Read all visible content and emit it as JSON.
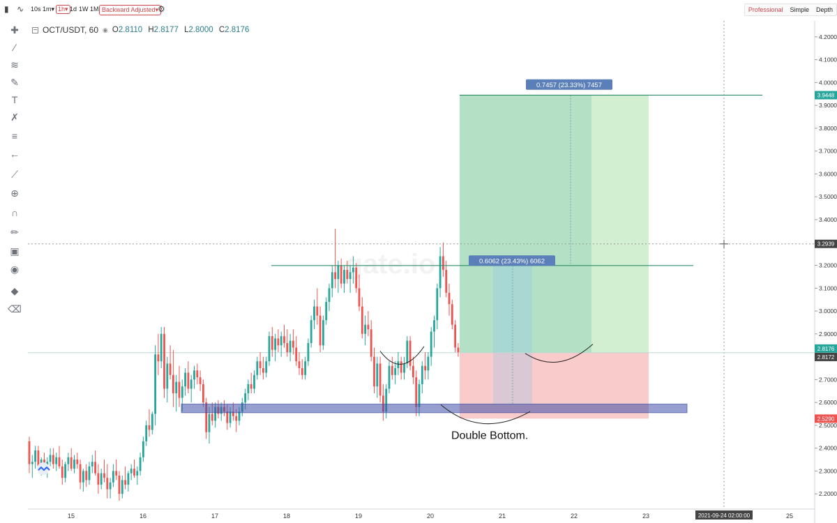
{
  "toolbar": {
    "intervals": [
      "10s",
      "1m▾",
      "1h▾",
      "1d",
      "1W",
      "1M"
    ],
    "active_interval": "1h▾",
    "adjust_label": "Backward Adjusted▾",
    "views": [
      "Professional",
      "Simple",
      "Depth"
    ],
    "active_view": "Professional"
  },
  "symbol": {
    "pair": "OCT/USDT, 60",
    "o_label": "O",
    "o": "2.8110",
    "h_label": "H",
    "h": "2.8177",
    "l_label": "L",
    "l": "2.8000",
    "c_label": "C",
    "c": "2.8176"
  },
  "colors": {
    "up": "#26a69a",
    "down": "#ef5350",
    "accent": "#d0454c",
    "teal": "#2a7e8b"
  },
  "chart_data": {
    "type": "candlestick",
    "y_ticks": [
      "4.2000",
      "4.1000",
      "4.0000",
      "3.9000",
      "3.8000",
      "3.7000",
      "3.6000",
      "3.5000",
      "3.4000",
      "3.3000",
      "3.2000",
      "3.1000",
      "3.0000",
      "2.9000",
      "2.8000",
      "2.7000",
      "2.6000",
      "2.5000",
      "2.4000",
      "2.3000",
      "2.2000"
    ],
    "ylim": [
      2.17,
      4.23
    ],
    "x_ticks": [
      "15",
      "16",
      "17",
      "18",
      "19",
      "20",
      "21",
      "22",
      "23",
      "24",
      "25"
    ],
    "crosshair_time": "2021-09-24 02:00:00",
    "crosshair_price": "3.2939",
    "price_tags": [
      {
        "value": 3.9448,
        "label": "3.9448",
        "color": "#26a69a"
      },
      {
        "value": 3.2939,
        "label": "3.2939",
        "color": "#444444"
      },
      {
        "value": 2.8176,
        "label": "2.8176",
        "color": "#26a69a"
      },
      {
        "value": 2.8172,
        "label": "2.8172",
        "color": "#444444"
      },
      {
        "value": 2.529,
        "label": "2.5290",
        "color": "#ef5350"
      }
    ],
    "measure_labels": [
      "0.6062 (23.43%) 6062",
      "0.7457 (23.33%) 7457"
    ],
    "annotation": "Double Bottom.",
    "support_zone": [
      2.555,
      2.593
    ],
    "resistance": 3.199,
    "target": 3.9448,
    "entry": 2.8176,
    "stop": 2.529,
    "watermark": "gate.io",
    "candles": [
      [
        2.43,
        2.45,
        2.29,
        2.33
      ],
      [
        2.33,
        2.37,
        2.27,
        2.34
      ],
      [
        2.34,
        2.41,
        2.31,
        2.39
      ],
      [
        2.39,
        2.41,
        2.3,
        2.32
      ],
      [
        2.32,
        2.36,
        2.28,
        2.35
      ],
      [
        2.35,
        2.38,
        2.29,
        2.3
      ],
      [
        2.3,
        2.36,
        2.27,
        2.34
      ],
      [
        2.34,
        2.4,
        2.32,
        2.37
      ],
      [
        2.37,
        2.4,
        2.31,
        2.33
      ],
      [
        2.33,
        2.38,
        2.3,
        2.36
      ],
      [
        2.36,
        2.41,
        2.31,
        2.32
      ],
      [
        2.32,
        2.35,
        2.24,
        2.27
      ],
      [
        2.27,
        2.34,
        2.25,
        2.33
      ],
      [
        2.33,
        2.38,
        2.3,
        2.36
      ],
      [
        2.36,
        2.4,
        2.3,
        2.31
      ],
      [
        2.31,
        2.37,
        2.29,
        2.35
      ],
      [
        2.35,
        2.38,
        2.31,
        2.33
      ],
      [
        2.33,
        2.35,
        2.22,
        2.25
      ],
      [
        2.25,
        2.31,
        2.21,
        2.3
      ],
      [
        2.3,
        2.33,
        2.23,
        2.26
      ],
      [
        2.26,
        2.34,
        2.24,
        2.32
      ],
      [
        2.32,
        2.37,
        2.29,
        2.34
      ],
      [
        2.34,
        2.39,
        2.28,
        2.29
      ],
      [
        2.29,
        2.33,
        2.2,
        2.24
      ],
      [
        2.24,
        2.31,
        2.22,
        2.29
      ],
      [
        2.29,
        2.35,
        2.25,
        2.27
      ],
      [
        2.27,
        2.33,
        2.18,
        2.22
      ],
      [
        2.22,
        2.27,
        2.18,
        2.25
      ],
      [
        2.25,
        2.33,
        2.23,
        2.3
      ],
      [
        2.3,
        2.35,
        2.26,
        2.28
      ],
      [
        2.28,
        2.3,
        2.17,
        2.2
      ],
      [
        2.2,
        2.28,
        2.18,
        2.26
      ],
      [
        2.26,
        2.32,
        2.22,
        2.24
      ],
      [
        2.24,
        2.3,
        2.21,
        2.29
      ],
      [
        2.29,
        2.33,
        2.26,
        2.31
      ],
      [
        2.31,
        2.35,
        2.27,
        2.28
      ],
      [
        2.28,
        2.32,
        2.24,
        2.3
      ],
      [
        2.3,
        2.38,
        2.28,
        2.36
      ],
      [
        2.36,
        2.45,
        2.34,
        2.43
      ],
      [
        2.43,
        2.52,
        2.41,
        2.5
      ],
      [
        2.5,
        2.57,
        2.45,
        2.48
      ],
      [
        2.48,
        2.56,
        2.46,
        2.55
      ],
      [
        2.55,
        2.85,
        2.5,
        2.81
      ],
      [
        2.81,
        2.9,
        2.72,
        2.78
      ],
      [
        2.78,
        2.93,
        2.75,
        2.9
      ],
      [
        2.9,
        2.93,
        2.62,
        2.66
      ],
      [
        2.66,
        2.8,
        2.6,
        2.77
      ],
      [
        2.77,
        2.85,
        2.7,
        2.72
      ],
      [
        2.72,
        2.83,
        2.58,
        2.64
      ],
      [
        2.64,
        2.72,
        2.56,
        2.69
      ],
      [
        2.69,
        2.76,
        2.58,
        2.62
      ],
      [
        2.62,
        2.7,
        2.56,
        2.67
      ],
      [
        2.67,
        2.75,
        2.63,
        2.73
      ],
      [
        2.73,
        2.78,
        2.64,
        2.66
      ],
      [
        2.66,
        2.72,
        2.6,
        2.7
      ],
      [
        2.7,
        2.76,
        2.66,
        2.74
      ],
      [
        2.74,
        2.77,
        2.68,
        2.71
      ],
      [
        2.71,
        2.74,
        2.65,
        2.68
      ],
      [
        2.68,
        2.7,
        2.58,
        2.6
      ],
      [
        2.6,
        2.62,
        2.44,
        2.47
      ],
      [
        2.47,
        2.58,
        2.42,
        2.55
      ],
      [
        2.55,
        2.6,
        2.5,
        2.52
      ],
      [
        2.52,
        2.6,
        2.49,
        2.58
      ],
      [
        2.58,
        2.61,
        2.53,
        2.55
      ],
      [
        2.55,
        2.6,
        2.52,
        2.58
      ],
      [
        2.58,
        2.61,
        2.54,
        2.56
      ],
      [
        2.56,
        2.59,
        2.48,
        2.51
      ],
      [
        2.51,
        2.58,
        2.49,
        2.56
      ],
      [
        2.56,
        2.6,
        2.52,
        2.54
      ],
      [
        2.54,
        2.57,
        2.47,
        2.52
      ],
      [
        2.52,
        2.58,
        2.5,
        2.56
      ],
      [
        2.56,
        2.62,
        2.54,
        2.6
      ],
      [
        2.6,
        2.66,
        2.57,
        2.64
      ],
      [
        2.64,
        2.7,
        2.61,
        2.68
      ],
      [
        2.68,
        2.73,
        2.64,
        2.66
      ],
      [
        2.66,
        2.74,
        2.64,
        2.72
      ],
      [
        2.72,
        2.8,
        2.7,
        2.78
      ],
      [
        2.78,
        2.82,
        2.72,
        2.75
      ],
      [
        2.75,
        2.8,
        2.7,
        2.73
      ],
      [
        2.73,
        2.8,
        2.71,
        2.78
      ],
      [
        2.78,
        2.91,
        2.76,
        2.89
      ],
      [
        2.89,
        2.93,
        2.8,
        2.83
      ],
      [
        2.83,
        2.9,
        2.78,
        2.88
      ],
      [
        2.88,
        2.92,
        2.82,
        2.85
      ],
      [
        2.85,
        2.91,
        2.8,
        2.89
      ],
      [
        2.89,
        2.94,
        2.84,
        2.86
      ],
      [
        2.86,
        2.92,
        2.8,
        2.82
      ],
      [
        2.82,
        2.9,
        2.78,
        2.87
      ],
      [
        2.87,
        2.92,
        2.81,
        2.84
      ],
      [
        2.84,
        2.89,
        2.76,
        2.78
      ],
      [
        2.78,
        2.82,
        2.72,
        2.75
      ],
      [
        2.75,
        2.79,
        2.7,
        2.72
      ],
      [
        2.72,
        2.8,
        2.7,
        2.78
      ],
      [
        2.78,
        2.88,
        2.76,
        2.86
      ],
      [
        2.86,
        2.98,
        2.84,
        2.96
      ],
      [
        2.96,
        3.05,
        2.92,
        3.02
      ],
      [
        3.02,
        3.1,
        2.94,
        2.98
      ],
      [
        2.98,
        3.02,
        2.82,
        2.85
      ],
      [
        2.85,
        2.98,
        2.83,
        2.96
      ],
      [
        2.96,
        3.06,
        2.94,
        3.04
      ],
      [
        3.04,
        3.12,
        3.0,
        3.1
      ],
      [
        3.1,
        3.2,
        3.06,
        3.17
      ],
      [
        3.17,
        3.36,
        3.1,
        3.14
      ],
      [
        3.14,
        3.22,
        3.08,
        3.2
      ],
      [
        3.2,
        3.23,
        3.1,
        3.12
      ],
      [
        3.12,
        3.2,
        3.08,
        3.18
      ],
      [
        3.18,
        3.22,
        3.12,
        3.14
      ],
      [
        3.14,
        3.2,
        3.08,
        3.17
      ],
      [
        3.17,
        3.24,
        3.12,
        3.19
      ],
      [
        3.19,
        3.21,
        3.08,
        3.1
      ],
      [
        3.1,
        3.16,
        3.0,
        3.02
      ],
      [
        3.02,
        3.06,
        2.88,
        2.9
      ],
      [
        2.9,
        2.98,
        2.85,
        2.94
      ],
      [
        2.94,
        3.0,
        2.89,
        2.92
      ],
      [
        2.92,
        2.96,
        2.78,
        2.8
      ],
      [
        2.8,
        2.84,
        2.64,
        2.67
      ],
      [
        2.67,
        2.8,
        2.62,
        2.77
      ],
      [
        2.77,
        2.8,
        2.6,
        2.63
      ],
      [
        2.63,
        2.68,
        2.52,
        2.56
      ],
      [
        2.56,
        2.68,
        2.53,
        2.66
      ],
      [
        2.66,
        2.78,
        2.64,
        2.76
      ],
      [
        2.76,
        2.8,
        2.7,
        2.72
      ],
      [
        2.72,
        2.78,
        2.68,
        2.75
      ],
      [
        2.75,
        2.82,
        2.72,
        2.78
      ],
      [
        2.78,
        2.8,
        2.7,
        2.73
      ],
      [
        2.73,
        2.8,
        2.7,
        2.77
      ],
      [
        2.77,
        2.89,
        2.75,
        2.87
      ],
      [
        2.87,
        2.89,
        2.74,
        2.76
      ],
      [
        2.76,
        2.8,
        2.68,
        2.71
      ],
      [
        2.71,
        2.74,
        2.54,
        2.58
      ],
      [
        2.58,
        2.7,
        2.54,
        2.68
      ],
      [
        2.68,
        2.78,
        2.64,
        2.76
      ],
      [
        2.76,
        2.82,
        2.7,
        2.74
      ],
      [
        2.74,
        2.82,
        2.7,
        2.8
      ],
      [
        2.8,
        2.93,
        2.76,
        2.91
      ],
      [
        2.91,
        2.98,
        2.84,
        2.96
      ],
      [
        2.96,
        3.12,
        2.92,
        3.1
      ],
      [
        3.1,
        3.28,
        3.06,
        3.24
      ],
      [
        3.24,
        3.3,
        3.15,
        3.18
      ],
      [
        3.18,
        3.22,
        3.06,
        3.08
      ],
      [
        3.08,
        3.12,
        2.98,
        3.03
      ],
      [
        3.03,
        3.05,
        2.92,
        2.94
      ],
      [
        2.94,
        2.96,
        2.82,
        2.84
      ],
      [
        2.84,
        2.86,
        2.8,
        2.82
      ]
    ]
  }
}
